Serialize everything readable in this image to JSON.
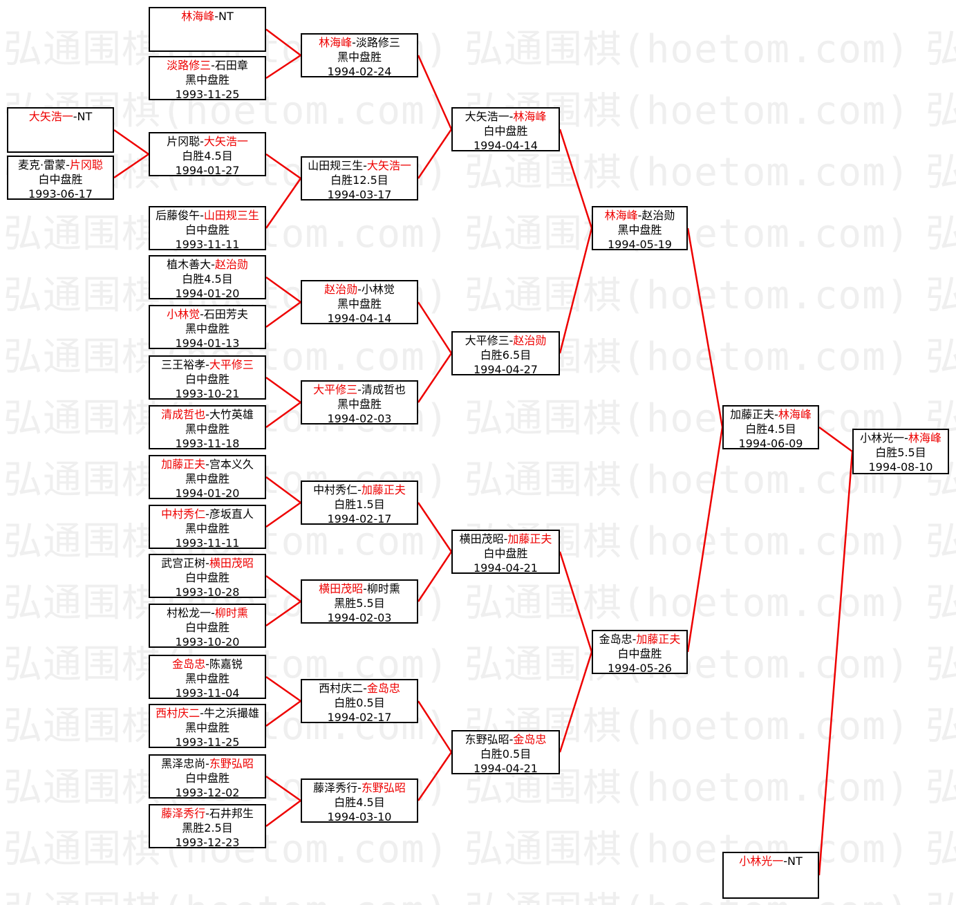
{
  "watermark": {
    "text": "弘通围棋(hoetom.com)"
  },
  "colors": {
    "winner_red": "#ee0000",
    "connector_red": "#ee0000",
    "box_border": "#000000",
    "box_text": "#000000",
    "watermark_gray": "#efefef",
    "background": "#ffffff"
  },
  "bracket": {
    "matches": [
      {
        "id": "A1",
        "col": "A",
        "name1": "大矢浩一",
        "name2": "NT",
        "winner": 1,
        "result": "",
        "date": ""
      },
      {
        "id": "A2",
        "col": "A",
        "name1": "麦克·雷蒙",
        "name2": "片冈聪",
        "winner": 2,
        "result": "白中盘胜",
        "date": "1993-06-17"
      },
      {
        "id": "B1",
        "col": "B",
        "name1": "林海峰",
        "name2": "NT",
        "winner": 1,
        "result": "",
        "date": ""
      },
      {
        "id": "B2",
        "col": "B",
        "name1": "淡路修三",
        "name2": "石田章",
        "winner": 1,
        "result": "黑中盘胜",
        "date": "1993-11-25"
      },
      {
        "id": "B3",
        "col": "B",
        "name1": "片冈聪",
        "name2": "大矢浩一",
        "winner": 2,
        "result": "白胜4.5目",
        "date": "1994-01-27"
      },
      {
        "id": "B4",
        "col": "B",
        "name1": "后藤俊午",
        "name2": "山田规三生",
        "winner": 2,
        "result": "白中盘胜",
        "date": "1993-11-11"
      },
      {
        "id": "B5",
        "col": "B",
        "name1": "植木善大",
        "name2": "赵治勋",
        "winner": 2,
        "result": "白胜4.5目",
        "date": "1994-01-20"
      },
      {
        "id": "B6",
        "col": "B",
        "name1": "小林觉",
        "name2": "石田芳夫",
        "winner": 1,
        "result": "黑中盘胜",
        "date": "1994-01-13"
      },
      {
        "id": "B7",
        "col": "B",
        "name1": "三王裕孝",
        "name2": "大平修三",
        "winner": 2,
        "result": "白中盘胜",
        "date": "1993-10-21"
      },
      {
        "id": "B8",
        "col": "B",
        "name1": "清成哲也",
        "name2": "大竹英雄",
        "winner": 1,
        "result": "黑中盘胜",
        "date": "1993-11-18"
      },
      {
        "id": "B9",
        "col": "B",
        "name1": "加藤正夫",
        "name2": "宫本义久",
        "winner": 1,
        "result": "黑中盘胜",
        "date": "1994-01-20"
      },
      {
        "id": "B10",
        "col": "B",
        "name1": "中村秀仁",
        "name2": "彦坂直人",
        "winner": 1,
        "result": "黑中盘胜",
        "date": "1993-11-11"
      },
      {
        "id": "B11",
        "col": "B",
        "name1": "武宫正树",
        "name2": "横田茂昭",
        "winner": 2,
        "result": "白中盘胜",
        "date": "1993-10-28"
      },
      {
        "id": "B12",
        "col": "B",
        "name1": "村松龙一",
        "name2": "柳时熏",
        "winner": 2,
        "result": "白中盘胜",
        "date": "1993-10-20"
      },
      {
        "id": "B13",
        "col": "B",
        "name1": "金岛忠",
        "name2": "陈嘉锐",
        "winner": 1,
        "result": "黑中盘胜",
        "date": "1993-11-04"
      },
      {
        "id": "B14",
        "col": "B",
        "name1": "西村庆二",
        "name2": "牛之浜撮雄",
        "winner": 1,
        "result": "黑中盘胜",
        "date": "1993-11-25"
      },
      {
        "id": "B15",
        "col": "B",
        "name1": "黑泽忠尚",
        "name2": "东野弘昭",
        "winner": 2,
        "result": "白中盘胜",
        "date": "1993-12-02"
      },
      {
        "id": "B16",
        "col": "B",
        "name1": "藤泽秀行",
        "name2": "石井邦生",
        "winner": 1,
        "result": "黑胜2.5目",
        "date": "1993-12-23"
      },
      {
        "id": "C1",
        "col": "C",
        "name1": "林海峰",
        "name2": "淡路修三",
        "winner": 1,
        "result": "黑中盘胜",
        "date": "1994-02-24"
      },
      {
        "id": "C2",
        "col": "C",
        "name1": "山田规三生",
        "name2": "大矢浩一",
        "winner": 2,
        "result": "白胜12.5目",
        "date": "1994-03-17"
      },
      {
        "id": "C3",
        "col": "C",
        "name1": "赵治勋",
        "name2": "小林觉",
        "winner": 1,
        "result": "黑中盘胜",
        "date": "1994-04-14"
      },
      {
        "id": "C4",
        "col": "C",
        "name1": "大平修三",
        "name2": "清成哲也",
        "winner": 1,
        "result": "黑中盘胜",
        "date": "1994-02-03"
      },
      {
        "id": "C5",
        "col": "C",
        "name1": "中村秀仁",
        "name2": "加藤正夫",
        "winner": 2,
        "result": "白胜1.5目",
        "date": "1994-02-17"
      },
      {
        "id": "C6",
        "col": "C",
        "name1": "横田茂昭",
        "name2": "柳时熏",
        "winner": 1,
        "result": "黑胜5.5目",
        "date": "1994-02-03"
      },
      {
        "id": "C7",
        "col": "C",
        "name1": "西村庆二",
        "name2": "金岛忠",
        "winner": 2,
        "result": "白胜0.5目",
        "date": "1994-02-17"
      },
      {
        "id": "C8",
        "col": "C",
        "name1": "藤泽秀行",
        "name2": "东野弘昭",
        "winner": 2,
        "result": "白胜4.5目",
        "date": "1994-03-10"
      },
      {
        "id": "D1",
        "col": "D",
        "name1": "大矢浩一",
        "name2": "林海峰",
        "winner": 2,
        "result": "白中盘胜",
        "date": "1994-04-14"
      },
      {
        "id": "D2",
        "col": "D",
        "name1": "大平修三",
        "name2": "赵治勋",
        "winner": 2,
        "result": "白胜6.5目",
        "date": "1994-04-27"
      },
      {
        "id": "D3",
        "col": "D",
        "name1": "横田茂昭",
        "name2": "加藤正夫",
        "winner": 2,
        "result": "白中盘胜",
        "date": "1994-04-21"
      },
      {
        "id": "D4",
        "col": "D",
        "name1": "东野弘昭",
        "name2": "金岛忠",
        "winner": 2,
        "result": "白胜0.5目",
        "date": "1994-04-21"
      },
      {
        "id": "E1",
        "col": "E",
        "name1": "林海峰",
        "name2": "赵治勋",
        "winner": 1,
        "result": "黑中盘胜",
        "date": "1994-05-19"
      },
      {
        "id": "E2",
        "col": "E",
        "name1": "金岛忠",
        "name2": "加藤正夫",
        "winner": 2,
        "result": "白中盘胜",
        "date": "1994-05-26"
      },
      {
        "id": "F1",
        "col": "F",
        "name1": "加藤正夫",
        "name2": "林海峰",
        "winner": 2,
        "result": "白胜4.5目",
        "date": "1994-06-09"
      },
      {
        "id": "F2",
        "col": "F",
        "name1": "小林光一",
        "name2": "NT",
        "winner": 1,
        "result": "",
        "date": ""
      },
      {
        "id": "G1",
        "col": "G",
        "name1": "小林光一",
        "name2": "林海峰",
        "winner": 2,
        "result": "白胜5.5目",
        "date": "1994-08-10"
      }
    ]
  }
}
